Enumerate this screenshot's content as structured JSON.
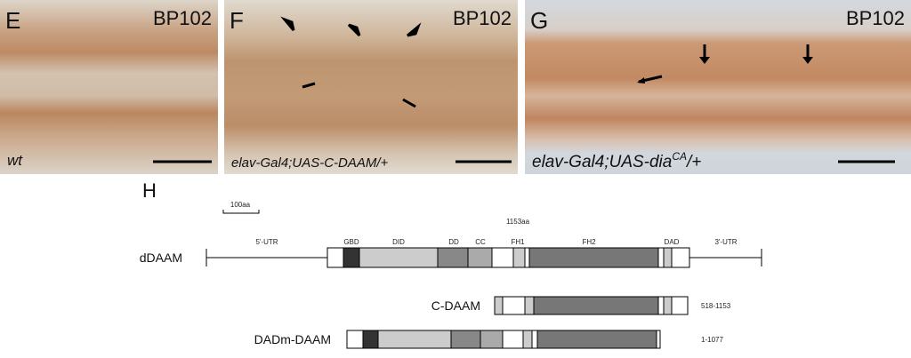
{
  "panels": [
    {
      "label": "E",
      "stain": "BP102",
      "genotype": "wt"
    },
    {
      "label": "F",
      "stain": "BP102",
      "genotype": "elav-Gal4;UAS-C-DAAM/+"
    },
    {
      "label": "G",
      "stain": "BP102",
      "genotype": {
        "text": "elav-Gal4;UAS-dia",
        "superscript": "CA",
        "suffix": "/+"
      }
    }
  ],
  "diagram": {
    "label": "H",
    "scale": "100aa",
    "length": "1153aa",
    "utr5": "5'-UTR",
    "utr3": "3'-UTR",
    "domains": [
      "GBD",
      "DID",
      "DD",
      "CC",
      "FH1",
      "FH2",
      "DAD"
    ],
    "constructs": [
      {
        "name": "dDAAM"
      },
      {
        "name": "C-DAAM",
        "range": "518-1153"
      },
      {
        "name": "DADm-DAAM",
        "range": "1-1077"
      }
    ]
  }
}
